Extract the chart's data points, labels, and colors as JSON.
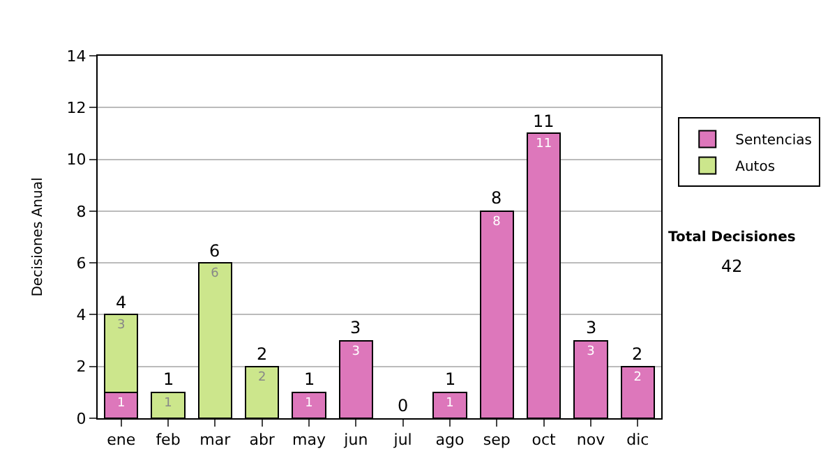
{
  "chart_data": {
    "type": "bar",
    "stacked": true,
    "ylabel": "Decisiones Anual",
    "categories": [
      "ene",
      "feb",
      "mar",
      "abr",
      "may",
      "jun",
      "jul",
      "ago",
      "sep",
      "oct",
      "nov",
      "dic"
    ],
    "series": [
      {
        "name": "Sentencias",
        "color": "#dd77bb",
        "values": [
          1,
          null,
          null,
          null,
          1,
          3,
          null,
          1,
          8,
          11,
          3,
          2
        ]
      },
      {
        "name": "Autos",
        "color": "#cce68c",
        "values": [
          3,
          1,
          6,
          2,
          null,
          null,
          null,
          null,
          null,
          null,
          null,
          null
        ]
      }
    ],
    "totals": [
      "4",
      "1",
      "6",
      "2",
      "1",
      "3",
      "0",
      "1",
      "8",
      "11",
      "3",
      "2"
    ],
    "data_labels": true,
    "ylim": [
      0,
      14
    ],
    "yticks": [
      0,
      2,
      4,
      6,
      8,
      10,
      12,
      14
    ],
    "grid": "y",
    "legend": "right",
    "annotations": [
      "Total Decisiones",
      "42"
    ]
  }
}
